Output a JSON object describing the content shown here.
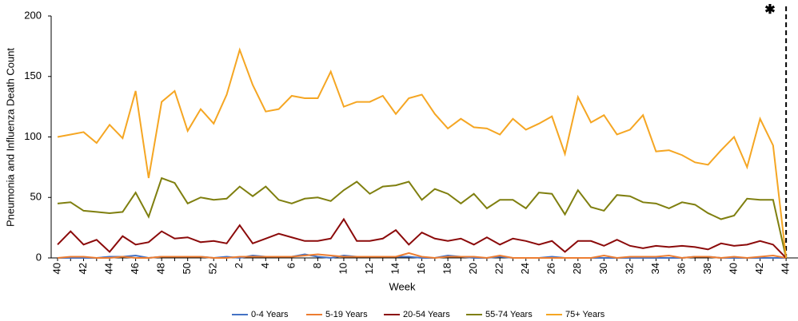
{
  "chart_data": {
    "type": "line",
    "y_label": "Pneumonia  and Influenza  Death Count",
    "x_label": "Week",
    "annotation": "✱",
    "categories": [
      "40",
      null,
      "42",
      null,
      "44",
      null,
      "46",
      null,
      "48",
      null,
      "50",
      null,
      "52",
      null,
      "2",
      null,
      "4",
      null,
      "6",
      null,
      "8",
      null,
      "10",
      null,
      "12",
      null,
      "14",
      null,
      "16",
      null,
      "18",
      null,
      "20",
      null,
      "22",
      null,
      "24",
      null,
      "26",
      null,
      "28",
      null,
      "30",
      null,
      "32",
      null,
      "34",
      null,
      "36",
      null,
      "38",
      null,
      "40",
      null,
      "42",
      null,
      "44"
    ],
    "ylim": [
      0,
      200
    ],
    "yticks": [
      0,
      50,
      100,
      150,
      200
    ],
    "series": [
      {
        "name": "0-4 Years",
        "color": "#4472c4",
        "values": [
          0,
          0,
          0,
          0,
          1,
          1,
          2,
          0,
          1,
          1,
          1,
          1,
          0,
          1,
          0,
          2,
          1,
          1,
          1,
          3,
          1,
          0,
          2,
          1,
          1,
          1,
          1,
          1,
          0,
          0,
          2,
          1,
          0,
          0,
          1,
          0,
          0,
          0,
          1,
          0,
          0,
          0,
          0,
          0,
          0,
          0,
          0,
          0,
          0,
          1,
          1,
          0,
          0,
          0,
          0,
          0,
          0
        ]
      },
      {
        "name": "5-19 Years",
        "color": "#ed7d31",
        "values": [
          0,
          1,
          1,
          0,
          0,
          1,
          0,
          0,
          1,
          1,
          1,
          1,
          0,
          0,
          1,
          1,
          1,
          1,
          1,
          2,
          3,
          2,
          1,
          1,
          1,
          1,
          1,
          4,
          1,
          0,
          1,
          1,
          1,
          0,
          2,
          0,
          0,
          0,
          0,
          0,
          0,
          0,
          2,
          0,
          1,
          1,
          1,
          2,
          0,
          1,
          1,
          0,
          1,
          0,
          1,
          2,
          0
        ]
      },
      {
        "name": "20-54 Years",
        "color": "#8b0a0a",
        "values": [
          11,
          22,
          11,
          15,
          5,
          18,
          11,
          13,
          22,
          16,
          17,
          13,
          14,
          12,
          27,
          12,
          16,
          20,
          17,
          14,
          14,
          16,
          32,
          14,
          14,
          16,
          23,
          11,
          21,
          16,
          14,
          16,
          11,
          17,
          11,
          16,
          14,
          11,
          14,
          5,
          14,
          14,
          10,
          15,
          10,
          8,
          10,
          9,
          10,
          9,
          7,
          12,
          10,
          11,
          14,
          11,
          0
        ]
      },
      {
        "name": "55-74 Years",
        "color": "#7f7f0f",
        "values": [
          45,
          46,
          39,
          38,
          37,
          38,
          54,
          34,
          66,
          62,
          45,
          50,
          48,
          49,
          59,
          51,
          59,
          48,
          45,
          49,
          50,
          47,
          56,
          63,
          53,
          59,
          60,
          63,
          48,
          57,
          53,
          45,
          53,
          41,
          48,
          48,
          41,
          54,
          53,
          36,
          56,
          42,
          39,
          52,
          51,
          46,
          45,
          41,
          46,
          44,
          37,
          32,
          35,
          49,
          48,
          48,
          0
        ]
      },
      {
        "name": "75+ Years",
        "color": "#f5a623",
        "values": [
          100,
          102,
          104,
          95,
          110,
          99,
          138,
          66,
          129,
          138,
          105,
          123,
          111,
          135,
          172,
          143,
          121,
          123,
          134,
          132,
          132,
          154,
          125,
          129,
          129,
          134,
          119,
          132,
          135,
          119,
          107,
          115,
          108,
          107,
          102,
          115,
          106,
          111,
          117,
          86,
          133,
          112,
          118,
          102,
          106,
          118,
          88,
          89,
          85,
          79,
          77,
          89,
          100,
          75,
          115,
          93,
          0
        ]
      }
    ]
  }
}
